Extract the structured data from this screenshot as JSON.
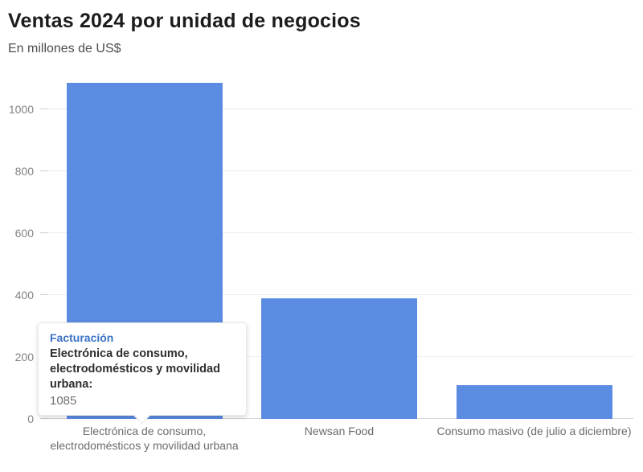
{
  "header": {
    "title": "Ventas 2024 por unidad de negocios",
    "subtitle": "En millones de US$"
  },
  "chart_data": {
    "type": "bar",
    "title": "Ventas 2024 por unidad de negocios",
    "subtitle": "En millones de US$",
    "categories": [
      "Electrónica de consumo, electrodomésticos y movilidad urbana",
      "Newsan Food",
      "Consumo masivo (de julio a diciembre)"
    ],
    "values": [
      1085,
      390,
      110
    ],
    "series_name": "Facturación",
    "xlabel": "",
    "ylabel": "En millones de US$",
    "ylim": [
      0,
      1105
    ],
    "yticks": [
      0,
      200,
      400,
      600,
      800,
      1000
    ],
    "grid": true,
    "legend": false,
    "bar_color": "#5b8ce2"
  },
  "tooltip": {
    "series_label": "Facturación",
    "category_label": "Electrónica de consumo, electrodomésticos y movilidad urbana:",
    "value": "1085"
  },
  "colors": {
    "bar": "#5b8ce2",
    "tooltip_accent": "#3a72c6",
    "title_text": "#1c1c1c",
    "subtitle_text": "#4d4d4d",
    "axis_text": "#828282",
    "category_text": "#6b6b6b",
    "gridline": "#ececec"
  }
}
